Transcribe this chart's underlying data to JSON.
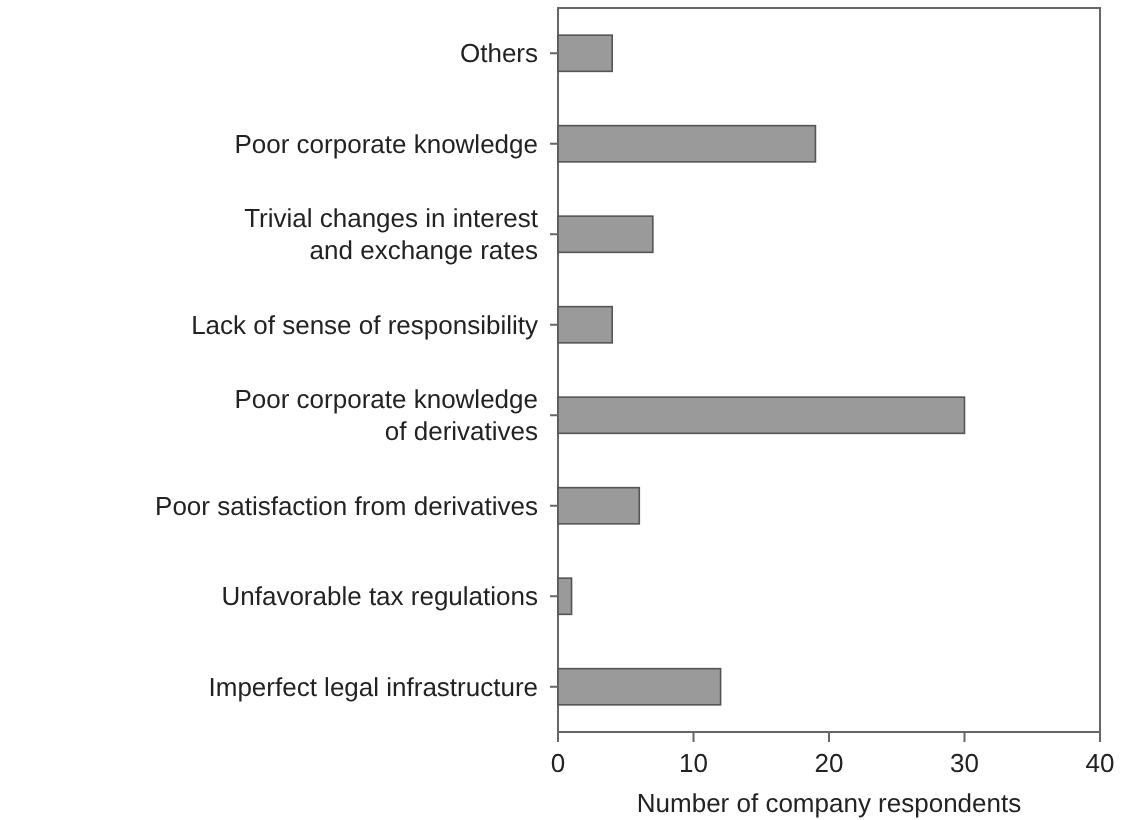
{
  "chart_data": {
    "type": "bar",
    "orientation": "horizontal",
    "xlabel": "Number of company respondents",
    "categories": [
      "Others",
      "Poor corporate knowledge",
      "Trivial changes in interest and exchange rates",
      "Lack of sense of responsibility",
      "Poor corporate knowledge of derivatives",
      "Poor satisfaction from derivatives",
      "Unfavorable tax regulations",
      "Imperfect legal infrastructure"
    ],
    "values": [
      4,
      19,
      7,
      4,
      30,
      6,
      1,
      12
    ],
    "color": "#9a9a9a",
    "xlim": [
      0,
      40
    ],
    "xticks": [
      0,
      10,
      20,
      30,
      40
    ],
    "grid": false
  }
}
